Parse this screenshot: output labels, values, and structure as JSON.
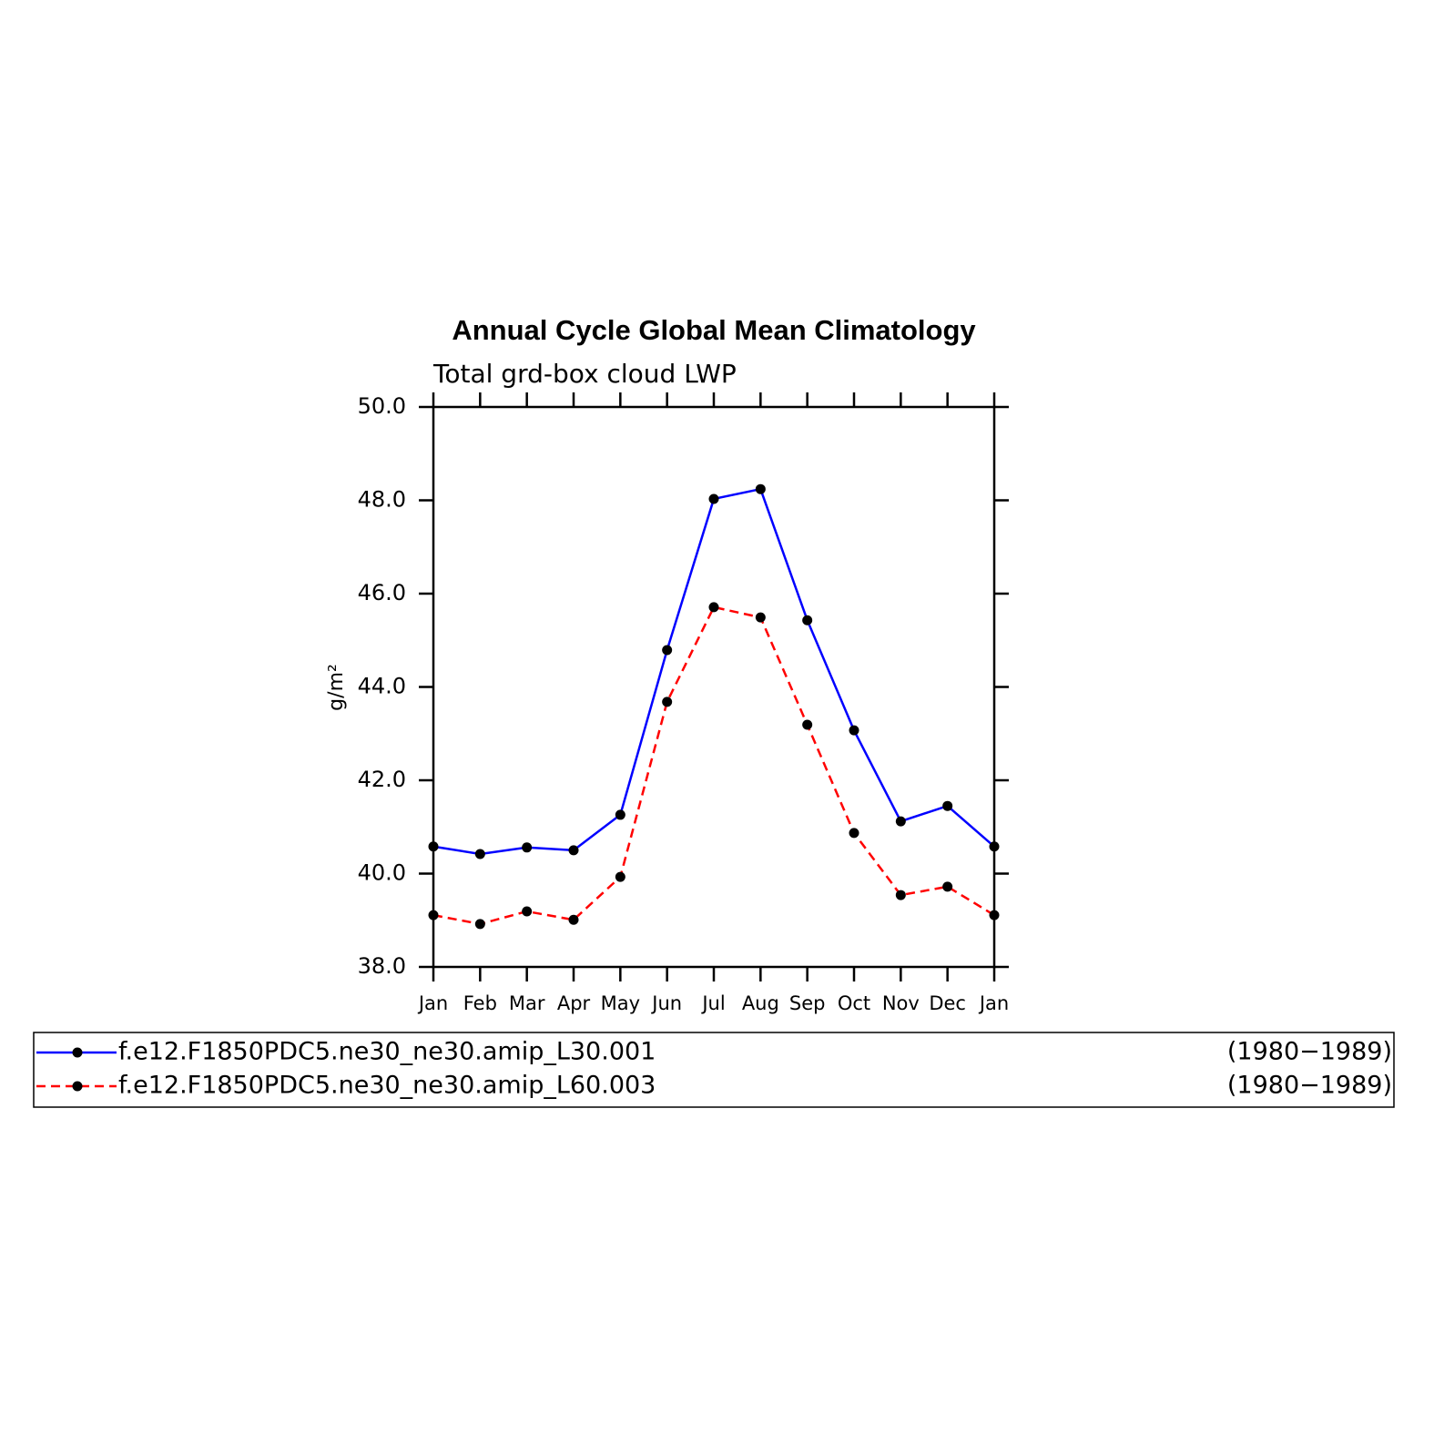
{
  "chart_data": {
    "type": "line",
    "title": "Annual Cycle Global Mean Climatology",
    "subtitle": "Total grd-box cloud LWP",
    "y_label": "g/m²",
    "categories": [
      "Jan",
      "Feb",
      "Mar",
      "Apr",
      "May",
      "Jun",
      "Jul",
      "Aug",
      "Sep",
      "Oct",
      "Nov",
      "Dec",
      "Jan"
    ],
    "series": [
      {
        "name": "f.e12.F1850PDC5.ne30_ne30.amip_L30.001",
        "period": "(1980−1989)",
        "color": "#0000ff",
        "dash": false,
        "values": [
          40.58,
          40.42,
          40.56,
          40.5,
          41.26,
          44.79,
          48.03,
          48.24,
          45.43,
          43.07,
          41.12,
          41.45,
          40.58
        ]
      },
      {
        "name": "f.e12.F1850PDC5.ne30_ne30.amip_L60.003",
        "period": "(1980−1989)",
        "color": "#ff0000",
        "dash": true,
        "values": [
          39.11,
          38.92,
          39.19,
          39.01,
          39.93,
          43.68,
          45.71,
          45.49,
          43.19,
          40.87,
          39.54,
          39.72,
          39.11
        ]
      }
    ],
    "ylim": [
      38,
      50
    ],
    "yticks": [
      {
        "value": 38,
        "label": "38.0"
      },
      {
        "value": 40,
        "label": "40.0"
      },
      {
        "value": 42,
        "label": "42.0"
      },
      {
        "value": 44,
        "label": "44.0"
      },
      {
        "value": 46,
        "label": "46.0"
      },
      {
        "value": 48,
        "label": "48.0"
      },
      {
        "value": 50,
        "label": "50.0"
      }
    ]
  }
}
